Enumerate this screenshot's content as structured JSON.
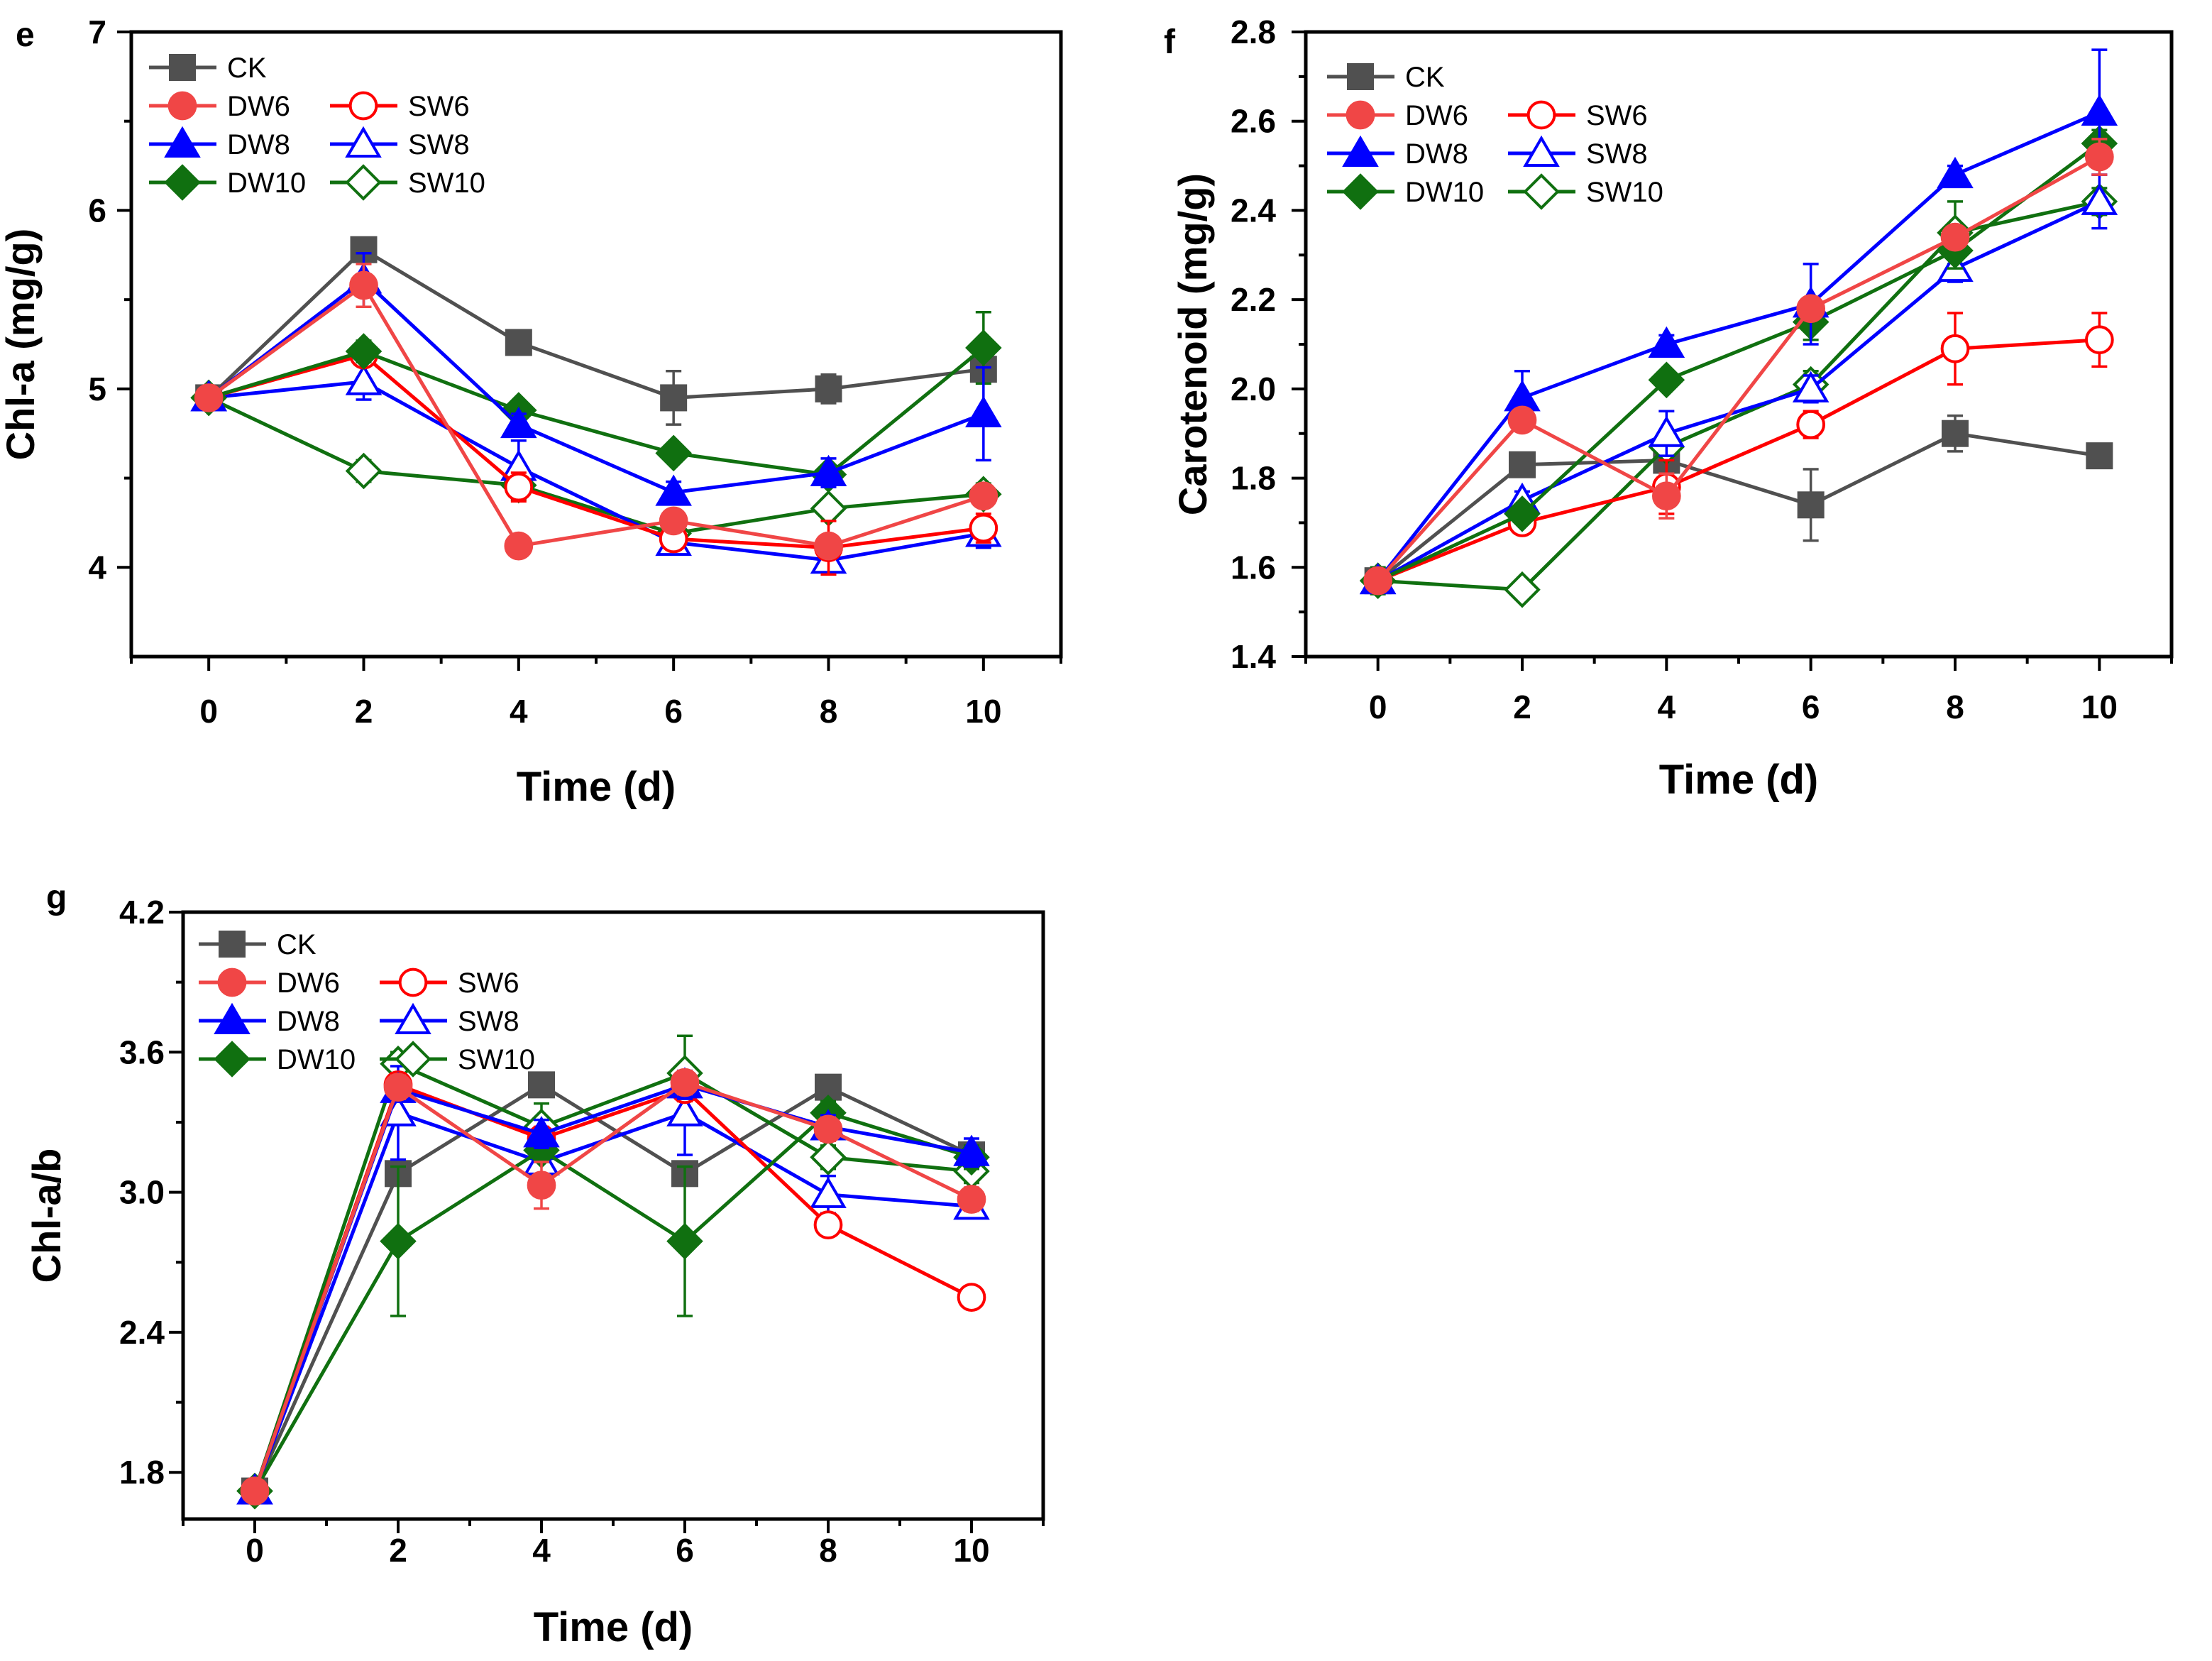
{
  "figure": {
    "background": "#ffffff"
  },
  "styles": {
    "CK": {
      "color": "#505050",
      "marker": "square",
      "fill": true
    },
    "DW6": {
      "color": "#f04646",
      "marker": "circle",
      "fill": true
    },
    "SW6": {
      "color": "#ff0000",
      "marker": "circle",
      "fill": false
    },
    "DW8": {
      "color": "#0000ff",
      "marker": "triangle",
      "fill": true
    },
    "SW8": {
      "color": "#0000ff",
      "marker": "triangle",
      "fill": false
    },
    "DW10": {
      "color": "#107010",
      "marker": "diamond",
      "fill": true
    },
    "SW10": {
      "color": "#107010",
      "marker": "diamond",
      "fill": false
    }
  },
  "legend_order": [
    [
      "CK"
    ],
    [
      "DW6",
      "SW6"
    ],
    [
      "DW8",
      "SW8"
    ],
    [
      "DW10",
      "SW10"
    ]
  ],
  "chart_data": [
    {
      "panel": "e",
      "type": "line",
      "title": "",
      "xlabel": "Time (d)",
      "ylabel": "Chl-a (mg/g)",
      "x": [
        0,
        2,
        4,
        6,
        8,
        10
      ],
      "xlim": [
        -1,
        11
      ],
      "ylim": [
        3.5,
        7
      ],
      "yticks": [
        4,
        5,
        6,
        7
      ],
      "yticklabels": [
        "4",
        "5",
        "6",
        "7"
      ],
      "legend_position": "top-left",
      "series": [
        {
          "name": "CK",
          "values": [
            4.95,
            5.78,
            5.26,
            4.95,
            5.0,
            5.11
          ],
          "err": [
            0.03,
            0.03,
            0.03,
            0.15,
            0.08,
            0.06
          ]
        },
        {
          "name": "DW6",
          "values": [
            4.95,
            5.58,
            4.12,
            4.26,
            4.12,
            4.4
          ],
          "err": [
            0.03,
            0.12,
            0.05,
            0.05,
            0.05,
            0.06
          ]
        },
        {
          "name": "SW6",
          "values": [
            4.95,
            5.19,
            4.45,
            4.16,
            4.11,
            4.22
          ],
          "err": [
            0.03,
            0.05,
            0.08,
            0.06,
            0.15,
            0.08
          ]
        },
        {
          "name": "DW8",
          "values": [
            4.95,
            5.61,
            4.8,
            4.42,
            4.53,
            4.86
          ],
          "err": [
            0.03,
            0.15,
            0.06,
            0.06,
            0.08,
            0.26
          ]
        },
        {
          "name": "SW8",
          "values": [
            4.95,
            5.04,
            4.56,
            4.14,
            4.04,
            4.19
          ],
          "err": [
            0.03,
            0.1,
            0.15,
            0.05,
            0.04,
            0.08
          ]
        },
        {
          "name": "DW10",
          "values": [
            4.95,
            5.21,
            4.88,
            4.64,
            4.52,
            5.23
          ],
          "err": [
            0.03,
            0.06,
            0.05,
            0.05,
            0.05,
            0.2
          ]
        },
        {
          "name": "SW10",
          "values": [
            4.95,
            4.54,
            4.46,
            4.19,
            4.33,
            4.41
          ],
          "err": [
            0.05,
            0.06,
            0.08,
            0.07,
            0.05,
            0.06
          ]
        }
      ]
    },
    {
      "panel": "f",
      "type": "line",
      "title": "",
      "xlabel": "Time (d)",
      "ylabel": "Carotenoid (mg/g)",
      "x": [
        0,
        2,
        4,
        6,
        8,
        10
      ],
      "xlim": [
        -1,
        11
      ],
      "ylim": [
        1.4,
        2.8
      ],
      "yticks": [
        1.4,
        1.6,
        1.8,
        2.0,
        2.2,
        2.4,
        2.6,
        2.8
      ],
      "yticklabels": [
        "1.4",
        "1.6",
        "1.8",
        "2.0",
        "2.2",
        "2.4",
        "2.6",
        "2.8"
      ],
      "legend_position": "top-left",
      "series": [
        {
          "name": "CK",
          "values": [
            1.57,
            1.83,
            1.84,
            1.74,
            1.9,
            1.85
          ],
          "err": [
            0.01,
            0.02,
            0.02,
            0.08,
            0.04,
            0.02
          ]
        },
        {
          "name": "DW6",
          "values": [
            1.57,
            1.93,
            1.76,
            2.18,
            2.34,
            2.52
          ],
          "err": [
            0.01,
            0.02,
            0.05,
            0.02,
            0.02,
            0.04
          ]
        },
        {
          "name": "SW6",
          "values": [
            1.57,
            1.7,
            1.78,
            1.92,
            2.09,
            2.11
          ],
          "err": [
            0.01,
            0.02,
            0.06,
            0.03,
            0.08,
            0.06
          ]
        },
        {
          "name": "DW8",
          "values": [
            1.57,
            1.98,
            2.1,
            2.19,
            2.48,
            2.62
          ],
          "err": [
            0.01,
            0.06,
            0.02,
            0.09,
            0.02,
            0.14
          ]
        },
        {
          "name": "SW8",
          "values": [
            1.57,
            1.75,
            1.9,
            2.0,
            2.27,
            2.42
          ],
          "err": [
            0.01,
            0.02,
            0.05,
            0.03,
            0.03,
            0.06
          ]
        },
        {
          "name": "DW10",
          "values": [
            1.57,
            1.72,
            2.02,
            2.15,
            2.31,
            2.55
          ],
          "err": [
            0.01,
            0.02,
            0.02,
            0.04,
            0.04,
            0.03
          ]
        },
        {
          "name": "SW10",
          "values": [
            1.57,
            1.55,
            1.87,
            2.01,
            2.35,
            2.42
          ],
          "err": [
            0.03,
            0.02,
            0.03,
            0.03,
            0.07,
            0.03
          ]
        }
      ]
    },
    {
      "panel": "g",
      "type": "line",
      "title": "",
      "xlabel": "Time (d)",
      "ylabel": "Chl-a/b",
      "x": [
        0,
        2,
        4,
        6,
        8,
        10
      ],
      "xlim": [
        -1,
        11
      ],
      "ylim": [
        1.6,
        4.2
      ],
      "yticks": [
        1.8,
        2.4,
        3.0,
        3.6,
        4.2
      ],
      "yticklabels": [
        "1.8",
        "2.4",
        "3.0",
        "3.6",
        "4.2"
      ],
      "legend_position": "top-left",
      "series": [
        {
          "name": "CK",
          "values": [
            1.72,
            3.08,
            3.46,
            3.08,
            3.45,
            3.16
          ],
          "err": [
            0.02,
            0.03,
            0.03,
            0.03,
            0.03,
            0.04
          ]
        },
        {
          "name": "DW6",
          "values": [
            1.72,
            3.45,
            3.03,
            3.47,
            3.27,
            2.97
          ],
          "err": [
            0.02,
            0.05,
            0.1,
            0.05,
            0.05,
            0.05
          ]
        },
        {
          "name": "SW6",
          "values": [
            1.72,
            3.46,
            3.23,
            3.44,
            2.86,
            2.55
          ],
          "err": [
            0.02,
            0.05,
            0.05,
            0.05,
            0.04,
            0.04
          ]
        },
        {
          "name": "DW8",
          "values": [
            1.72,
            3.44,
            3.25,
            3.46,
            3.28,
            3.17
          ],
          "err": [
            0.02,
            0.05,
            0.06,
            0.06,
            0.05,
            0.06
          ]
        },
        {
          "name": "SW8",
          "values": [
            1.72,
            3.34,
            3.13,
            3.34,
            2.99,
            2.94
          ],
          "err": [
            0.02,
            0.2,
            0.06,
            0.18,
            0.08,
            0.04
          ]
        },
        {
          "name": "DW10",
          "values": [
            1.72,
            2.79,
            3.18,
            2.79,
            3.34,
            3.15
          ],
          "err": [
            0.02,
            0.32,
            0.05,
            0.32,
            0.05,
            0.05
          ]
        },
        {
          "name": "SW10",
          "values": [
            1.72,
            3.55,
            3.28,
            3.51,
            3.15,
            3.09
          ],
          "err": [
            0.02,
            0.05,
            0.1,
            0.16,
            0.05,
            0.05
          ]
        }
      ]
    }
  ]
}
